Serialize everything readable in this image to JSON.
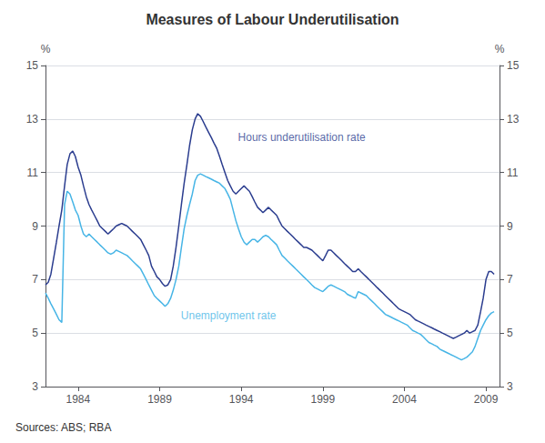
{
  "chart_data": {
    "type": "line",
    "title": "Measures of Labour Underutilisation",
    "source": "Sources: ABS; RBA",
    "ylabel": "%",
    "y2label": "%",
    "xlim": [
      1982.0,
      2009.83
    ],
    "xticks": [
      1984,
      1989,
      1994,
      1999,
      2004,
      2009
    ],
    "ylim": [
      3,
      15
    ],
    "yticks": [
      3,
      5,
      7,
      9,
      11,
      13,
      15
    ],
    "y2lim": [
      3,
      15
    ],
    "y2ticks": [
      3,
      5,
      7,
      9,
      11,
      13,
      15
    ],
    "grid": true,
    "x": [
      1982.0,
      1982.17,
      1982.33,
      1982.5,
      1982.67,
      1982.83,
      1983.0,
      1983.17,
      1983.33,
      1983.5,
      1983.67,
      1983.83,
      1984.0,
      1984.17,
      1984.33,
      1984.5,
      1984.67,
      1984.83,
      1985.0,
      1985.17,
      1985.33,
      1985.5,
      1985.67,
      1985.83,
      1986.0,
      1986.17,
      1986.33,
      1986.5,
      1986.67,
      1986.83,
      1987.0,
      1987.17,
      1987.33,
      1987.5,
      1987.67,
      1987.83,
      1988.0,
      1988.17,
      1988.33,
      1988.5,
      1988.67,
      1988.83,
      1989.0,
      1989.17,
      1989.33,
      1989.5,
      1989.67,
      1989.83,
      1990.0,
      1990.17,
      1990.33,
      1990.5,
      1990.67,
      1990.83,
      1991.0,
      1991.17,
      1991.33,
      1991.5,
      1991.67,
      1991.83,
      1992.0,
      1992.17,
      1992.33,
      1992.5,
      1992.67,
      1992.83,
      1993.0,
      1993.17,
      1993.33,
      1993.5,
      1993.67,
      1993.83,
      1994.0,
      1994.17,
      1994.33,
      1994.5,
      1994.67,
      1994.83,
      1995.0,
      1995.17,
      1995.33,
      1995.5,
      1995.67,
      1995.83,
      1996.0,
      1996.17,
      1996.33,
      1996.5,
      1996.67,
      1996.83,
      1997.0,
      1997.17,
      1997.33,
      1997.5,
      1997.67,
      1997.83,
      1998.0,
      1998.17,
      1998.33,
      1998.5,
      1998.67,
      1998.83,
      1999.0,
      1999.17,
      1999.33,
      1999.5,
      1999.67,
      1999.83,
      2000.0,
      2000.17,
      2000.33,
      2000.5,
      2000.67,
      2000.83,
      2001.0,
      2001.17,
      2001.33,
      2001.5,
      2001.67,
      2001.83,
      2002.0,
      2002.17,
      2002.33,
      2002.5,
      2002.67,
      2002.83,
      2003.0,
      2003.17,
      2003.33,
      2003.5,
      2003.67,
      2003.83,
      2004.0,
      2004.17,
      2004.33,
      2004.5,
      2004.67,
      2004.83,
      2005.0,
      2005.17,
      2005.33,
      2005.5,
      2005.67,
      2005.83,
      2006.0,
      2006.17,
      2006.33,
      2006.5,
      2006.67,
      2006.83,
      2007.0,
      2007.17,
      2007.33,
      2007.5,
      2007.67,
      2007.83,
      2008.0,
      2008.17,
      2008.33,
      2008.5,
      2008.67,
      2008.83,
      2009.0,
      2009.17,
      2009.33,
      2009.5
    ],
    "series": [
      {
        "color": "#2b3d8f",
        "values": [
          6.8,
          6.9,
          7.2,
          7.8,
          8.4,
          9.0,
          9.6,
          10.5,
          11.3,
          11.7,
          11.8,
          11.6,
          11.2,
          10.9,
          10.5,
          10.1,
          9.8,
          9.6,
          9.4,
          9.2,
          9.0,
          8.9,
          8.8,
          8.7,
          8.8,
          8.9,
          9.0,
          9.05,
          9.1,
          9.05,
          9.0,
          8.9,
          8.8,
          8.7,
          8.6,
          8.5,
          8.3,
          8.1,
          7.9,
          7.5,
          7.3,
          7.1,
          7.0,
          6.85,
          6.75,
          6.8,
          7.0,
          7.5,
          8.2,
          9.0,
          9.8,
          10.6,
          11.3,
          12.0,
          12.6,
          13.0,
          13.2,
          13.1,
          12.9,
          12.7,
          12.5,
          12.3,
          12.1,
          11.9,
          11.6,
          11.3,
          11.0,
          10.7,
          10.5,
          10.3,
          10.2,
          10.3,
          10.4,
          10.5,
          10.4,
          10.3,
          10.1,
          9.9,
          9.7,
          9.6,
          9.5,
          9.6,
          9.7,
          9.6,
          9.5,
          9.4,
          9.2,
          9.0,
          8.9,
          8.8,
          8.7,
          8.6,
          8.5,
          8.4,
          8.3,
          8.2,
          8.2,
          8.15,
          8.1,
          8.0,
          7.9,
          7.8,
          7.7,
          7.9,
          8.1,
          8.1,
          8.0,
          7.9,
          7.8,
          7.7,
          7.6,
          7.5,
          7.4,
          7.3,
          7.3,
          7.4,
          7.3,
          7.2,
          7.1,
          7.0,
          6.9,
          6.8,
          6.7,
          6.6,
          6.5,
          6.4,
          6.3,
          6.2,
          6.1,
          6.0,
          5.9,
          5.85,
          5.8,
          5.75,
          5.7,
          5.6,
          5.5,
          5.45,
          5.4,
          5.35,
          5.3,
          5.25,
          5.2,
          5.15,
          5.1,
          5.05,
          5.0,
          4.95,
          4.9,
          4.85,
          4.8,
          4.85,
          4.9,
          4.95,
          5.0,
          5.1,
          5.0,
          5.05,
          5.1,
          5.3,
          5.8,
          6.3,
          7.0,
          7.3,
          7.3,
          7.2
        ]
      },
      {
        "color": "#47b5e6",
        "values": [
          6.5,
          6.3,
          6.1,
          5.9,
          5.7,
          5.5,
          5.4,
          9.8,
          10.3,
          10.2,
          9.9,
          9.6,
          9.4,
          9.0,
          8.7,
          8.6,
          8.7,
          8.6,
          8.5,
          8.4,
          8.3,
          8.2,
          8.1,
          8.0,
          7.95,
          8.0,
          8.1,
          8.05,
          8.0,
          7.95,
          7.9,
          7.8,
          7.7,
          7.6,
          7.5,
          7.4,
          7.2,
          7.0,
          6.8,
          6.6,
          6.4,
          6.3,
          6.2,
          6.1,
          6.0,
          6.1,
          6.3,
          6.6,
          7.0,
          7.5,
          8.2,
          8.9,
          9.4,
          9.8,
          10.2,
          10.7,
          10.9,
          10.95,
          10.9,
          10.85,
          10.8,
          10.75,
          10.7,
          10.65,
          10.6,
          10.5,
          10.4,
          10.2,
          10.0,
          9.6,
          9.2,
          8.9,
          8.6,
          8.4,
          8.3,
          8.4,
          8.5,
          8.5,
          8.4,
          8.5,
          8.6,
          8.65,
          8.6,
          8.5,
          8.4,
          8.3,
          8.1,
          7.9,
          7.8,
          7.7,
          7.6,
          7.5,
          7.4,
          7.3,
          7.2,
          7.1,
          7.0,
          6.9,
          6.8,
          6.7,
          6.65,
          6.6,
          6.55,
          6.65,
          6.75,
          6.8,
          6.75,
          6.7,
          6.65,
          6.6,
          6.55,
          6.45,
          6.4,
          6.35,
          6.3,
          6.55,
          6.5,
          6.45,
          6.4,
          6.3,
          6.2,
          6.1,
          6.0,
          5.9,
          5.8,
          5.7,
          5.65,
          5.6,
          5.55,
          5.5,
          5.45,
          5.4,
          5.35,
          5.3,
          5.2,
          5.1,
          5.05,
          5.0,
          4.95,
          4.85,
          4.75,
          4.65,
          4.6,
          4.55,
          4.5,
          4.4,
          4.35,
          4.3,
          4.25,
          4.2,
          4.15,
          4.1,
          4.05,
          4.0,
          4.05,
          4.1,
          4.2,
          4.3,
          4.5,
          4.8,
          5.1,
          5.3,
          5.5,
          5.65,
          5.75,
          5.8
        ]
      }
    ],
    "annotations": [
      {
        "text": "Hours underutilisation rate",
        "x": 1993.8,
        "y": 12.1,
        "color": "#2b3d8f"
      },
      {
        "text": "Unemployment rate",
        "x": 1990.3,
        "y": 5.85,
        "color": "#47b5e6"
      }
    ]
  }
}
